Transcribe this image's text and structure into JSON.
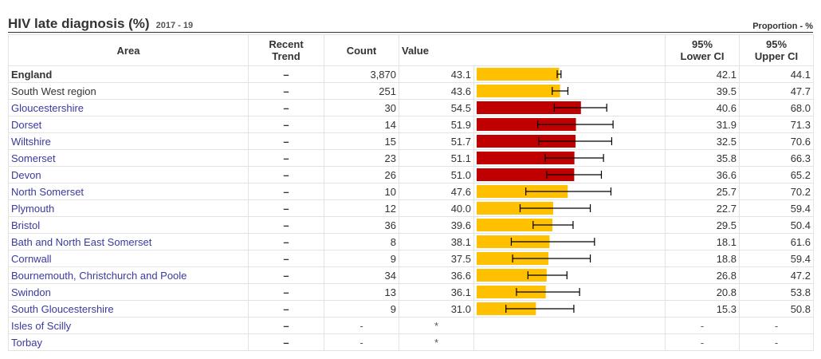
{
  "header": {
    "title": "HIV late diagnosis (%)",
    "period": "2017 - 19",
    "unit": "Proportion - %"
  },
  "columns": {
    "area": "Area",
    "trend_line1": "Recent",
    "trend_line2": "Trend",
    "count": "Count",
    "value": "Value",
    "lower_line1": "95%",
    "lower_line2": "Lower CI",
    "upper_line1": "95%",
    "upper_line2": "Upper CI"
  },
  "colors": {
    "similar": "#FFC000",
    "worse": "#C00000",
    "ci_line": "#000000"
  },
  "chart_data": {
    "type": "bar",
    "orientation": "horizontal",
    "xlim": [
      0,
      100
    ],
    "rows": [
      {
        "area": "England",
        "trend": "–",
        "count": "3,870",
        "value": 43.1,
        "value_label": "43.1",
        "lower": 42.1,
        "upper": 44.1,
        "lower_label": "42.1",
        "upper_label": "44.1",
        "status": "similar",
        "style": "bold"
      },
      {
        "area": "South West region",
        "trend": "–",
        "count": "251",
        "value": 43.6,
        "value_label": "43.6",
        "lower": 39.5,
        "upper": 47.7,
        "lower_label": "39.5",
        "upper_label": "47.7",
        "status": "similar",
        "style": "plain"
      },
      {
        "area": "Gloucestershire",
        "trend": "–",
        "count": "30",
        "value": 54.5,
        "value_label": "54.5",
        "lower": 40.6,
        "upper": 68.0,
        "lower_label": "40.6",
        "upper_label": "68.0",
        "status": "worse",
        "style": "link"
      },
      {
        "area": "Dorset",
        "trend": "–",
        "count": "14",
        "value": 51.9,
        "value_label": "51.9",
        "lower": 31.9,
        "upper": 71.3,
        "lower_label": "31.9",
        "upper_label": "71.3",
        "status": "worse",
        "style": "link"
      },
      {
        "area": "Wiltshire",
        "trend": "–",
        "count": "15",
        "value": 51.7,
        "value_label": "51.7",
        "lower": 32.5,
        "upper": 70.6,
        "lower_label": "32.5",
        "upper_label": "70.6",
        "status": "worse",
        "style": "link"
      },
      {
        "area": "Somerset",
        "trend": "–",
        "count": "23",
        "value": 51.1,
        "value_label": "51.1",
        "lower": 35.8,
        "upper": 66.3,
        "lower_label": "35.8",
        "upper_label": "66.3",
        "status": "worse",
        "style": "link"
      },
      {
        "area": "Devon",
        "trend": "–",
        "count": "26",
        "value": 51.0,
        "value_label": "51.0",
        "lower": 36.6,
        "upper": 65.2,
        "lower_label": "36.6",
        "upper_label": "65.2",
        "status": "worse",
        "style": "link"
      },
      {
        "area": "North Somerset",
        "trend": "–",
        "count": "10",
        "value": 47.6,
        "value_label": "47.6",
        "lower": 25.7,
        "upper": 70.2,
        "lower_label": "25.7",
        "upper_label": "70.2",
        "status": "similar",
        "style": "link"
      },
      {
        "area": "Plymouth",
        "trend": "–",
        "count": "12",
        "value": 40.0,
        "value_label": "40.0",
        "lower": 22.7,
        "upper": 59.4,
        "lower_label": "22.7",
        "upper_label": "59.4",
        "status": "similar",
        "style": "link"
      },
      {
        "area": "Bristol",
        "trend": "–",
        "count": "36",
        "value": 39.6,
        "value_label": "39.6",
        "lower": 29.5,
        "upper": 50.4,
        "lower_label": "29.5",
        "upper_label": "50.4",
        "status": "similar",
        "style": "link"
      },
      {
        "area": "Bath and North East Somerset",
        "trend": "–",
        "count": "8",
        "value": 38.1,
        "value_label": "38.1",
        "lower": 18.1,
        "upper": 61.6,
        "lower_label": "18.1",
        "upper_label": "61.6",
        "status": "similar",
        "style": "link"
      },
      {
        "area": "Cornwall",
        "trend": "–",
        "count": "9",
        "value": 37.5,
        "value_label": "37.5",
        "lower": 18.8,
        "upper": 59.4,
        "lower_label": "18.8",
        "upper_label": "59.4",
        "status": "similar",
        "style": "link"
      },
      {
        "area": "Bournemouth, Christchurch and Poole",
        "trend": "–",
        "count": "34",
        "value": 36.6,
        "value_label": "36.6",
        "lower": 26.8,
        "upper": 47.2,
        "lower_label": "26.8",
        "upper_label": "47.2",
        "status": "similar",
        "style": "link"
      },
      {
        "area": "Swindon",
        "trend": "–",
        "count": "13",
        "value": 36.1,
        "value_label": "36.1",
        "lower": 20.8,
        "upper": 53.8,
        "lower_label": "20.8",
        "upper_label": "53.8",
        "status": "similar",
        "style": "link"
      },
      {
        "area": "South Gloucestershire",
        "trend": "–",
        "count": "9",
        "value": 31.0,
        "value_label": "31.0",
        "lower": 15.3,
        "upper": 50.8,
        "lower_label": "15.3",
        "upper_label": "50.8",
        "status": "similar",
        "style": "link"
      },
      {
        "area": "Isles of Scilly",
        "trend": "–",
        "count": "-",
        "value": null,
        "value_label": "*",
        "lower": null,
        "upper": null,
        "lower_label": "-",
        "upper_label": "-",
        "status": "none",
        "style": "link"
      },
      {
        "area": "Torbay",
        "trend": "–",
        "count": "-",
        "value": null,
        "value_label": "*",
        "lower": null,
        "upper": null,
        "lower_label": "-",
        "upper_label": "-",
        "status": "none",
        "style": "link"
      }
    ]
  }
}
